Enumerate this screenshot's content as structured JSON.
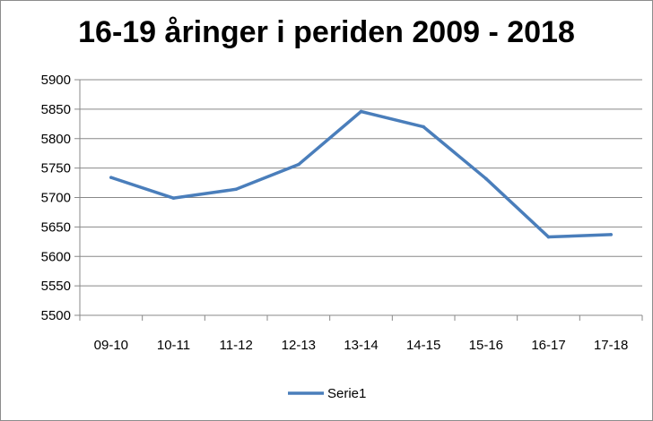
{
  "chart_data": {
    "type": "line",
    "title": "16-19 åringer i periden 2009 - 2018",
    "xlabel": "",
    "ylabel": "",
    "categories": [
      "09-10",
      "10-11",
      "11-12",
      "12-13",
      "13-14",
      "14-15",
      "15-16",
      "16-17",
      "17-18"
    ],
    "series": [
      {
        "name": "Serie1",
        "color": "#4a7ebb",
        "values": [
          5734,
          5699,
          5714,
          5756,
          5846,
          5820,
          5732,
          5633,
          5637
        ]
      }
    ],
    "ylim": [
      5500,
      5900
    ],
    "yticks": [
      5500,
      5550,
      5600,
      5650,
      5700,
      5750,
      5800,
      5850,
      5900
    ],
    "grid": true,
    "legend_position": "bottom"
  }
}
